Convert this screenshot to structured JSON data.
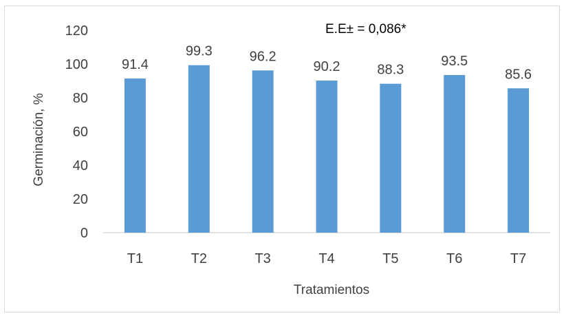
{
  "chart_data": {
    "type": "bar",
    "categories": [
      "T1",
      "T2",
      "T3",
      "T4",
      "T5",
      "T6",
      "T7"
    ],
    "values": [
      91.4,
      99.3,
      96.2,
      90.2,
      88.3,
      93.5,
      85.6
    ],
    "value_labels": [
      "91.4",
      "99.3",
      "96.2",
      "90.2",
      "88.3",
      "93.5",
      "85.6"
    ],
    "xlabel": "Tratamientos",
    "ylabel": "Germinación, %",
    "ylim": [
      0,
      120
    ],
    "yticks": [
      "0",
      "20",
      "40",
      "60",
      "80",
      "100",
      "120"
    ],
    "annotation": "E.E± = 0,086*",
    "grid": false,
    "bar_color": "#5b9bd5",
    "axis_color": "#d9d9d9"
  }
}
